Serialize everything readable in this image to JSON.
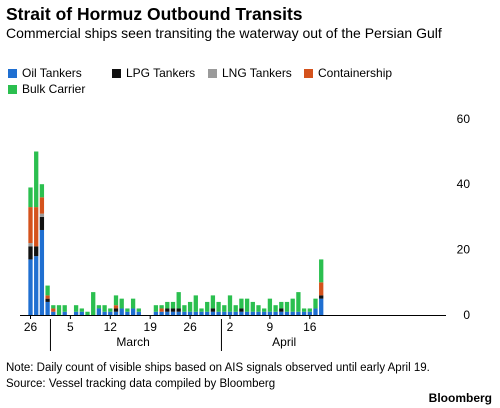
{
  "chart_data": {
    "type": "bar",
    "stacked": true,
    "title": "Strait of Hormuz Outbound Transits",
    "subtitle": "Commercial ships seen transiting the waterway out of the Persian Gulf",
    "xlabel": "",
    "ylabel": "",
    "ylim": [
      0,
      60
    ],
    "yticks": [
      0,
      20,
      40,
      60
    ],
    "grid": false,
    "legend_position": "top-left",
    "x_tick_labels": [
      "26",
      "5",
      "12",
      "19",
      "26",
      "2",
      "9",
      "16"
    ],
    "x_tick_days": [
      0,
      7,
      14,
      21,
      28,
      35,
      42,
      49
    ],
    "month_labels": [
      {
        "label": "March",
        "day": 18
      },
      {
        "label": "April",
        "day": 44.5
      }
    ],
    "month_dividers": [
      4,
      34
    ],
    "categories": [
      "Feb 26",
      "Feb 27",
      "Feb 28",
      "Mar 1",
      "Mar 2",
      "Mar 3",
      "Mar 4",
      "Mar 5",
      "Mar 6",
      "Mar 7",
      "Mar 8",
      "Mar 9",
      "Mar 10",
      "Mar 11",
      "Mar 12",
      "Mar 13",
      "Mar 14",
      "Mar 15",
      "Mar 16",
      "Mar 17",
      "Mar 18",
      "Mar 19",
      "Mar 20",
      "Mar 21",
      "Mar 22",
      "Mar 23",
      "Mar 24",
      "Mar 25",
      "Mar 26",
      "Mar 27",
      "Mar 28",
      "Mar 29",
      "Mar 30",
      "Mar 31",
      "Apr 1",
      "Apr 2",
      "Apr 3",
      "Apr 4",
      "Apr 5",
      "Apr 6",
      "Apr 7",
      "Apr 8",
      "Apr 9",
      "Apr 10",
      "Apr 11",
      "Apr 12",
      "Apr 13",
      "Apr 14",
      "Apr 15",
      "Apr 16",
      "Apr 17",
      "Apr 18"
    ],
    "series": [
      {
        "name": "Oil Tankers",
        "color": "#1f6fd1",
        "values": [
          17,
          18,
          26,
          4,
          1,
          0,
          1,
          0,
          1,
          1,
          0,
          0,
          2,
          1,
          1,
          1,
          2,
          1,
          2,
          1,
          0,
          0,
          1,
          1,
          1,
          1,
          1,
          1,
          1,
          1,
          1,
          1,
          1,
          1,
          1,
          1,
          1,
          1,
          1,
          1,
          1,
          1,
          1,
          1,
          1,
          1,
          1,
          1,
          1,
          1,
          2,
          5
        ]
      },
      {
        "name": "LPG Tankers",
        "color": "#111111",
        "values": [
          4,
          3,
          4,
          1,
          0,
          0,
          0,
          0,
          0,
          0,
          0,
          0,
          0,
          0,
          0,
          1,
          0,
          0,
          0,
          0,
          0,
          0,
          0,
          0,
          1,
          1,
          1,
          0,
          0,
          0,
          0,
          0,
          1,
          0,
          0,
          0,
          0,
          1,
          0,
          0,
          0,
          0,
          0,
          0,
          1,
          0,
          0,
          0,
          0,
          0,
          0,
          1
        ]
      },
      {
        "name": "LNG Tankers",
        "color": "#9a9a9a",
        "values": [
          1,
          0,
          1,
          0,
          0,
          0,
          0,
          0,
          0,
          0,
          0,
          0,
          0,
          0,
          0,
          0,
          0,
          0,
          0,
          0,
          0,
          0,
          0,
          0,
          0,
          0,
          0,
          0,
          0,
          0,
          0,
          0,
          0,
          0,
          0,
          0,
          0,
          0,
          0,
          0,
          0,
          0,
          0,
          0,
          0,
          0,
          0,
          0,
          0,
          0,
          0,
          0
        ]
      },
      {
        "name": "Containership",
        "color": "#d4521c",
        "values": [
          11,
          12,
          5,
          1,
          1,
          0,
          0,
          0,
          0,
          0,
          0,
          0,
          0,
          0,
          0,
          1,
          0,
          0,
          0,
          0,
          0,
          0,
          0,
          1,
          0,
          0,
          0,
          0,
          0,
          0,
          0,
          0,
          0,
          0,
          0,
          0,
          0,
          0,
          0,
          0,
          0,
          0,
          0,
          0,
          0,
          0,
          0,
          0,
          0,
          0,
          0,
          4
        ]
      },
      {
        "name": "Bulk Carrier",
        "color": "#2bbf4f",
        "values": [
          6,
          17,
          4,
          3,
          1,
          3,
          2,
          0,
          2,
          1,
          1,
          7,
          1,
          2,
          1,
          3,
          3,
          1,
          3,
          1,
          0,
          0,
          2,
          1,
          2,
          2,
          5,
          2,
          3,
          5,
          1,
          3,
          4,
          3,
          2,
          5,
          2,
          3,
          4,
          3,
          2,
          1,
          4,
          2,
          2,
          3,
          4,
          6,
          1,
          1,
          3,
          7
        ]
      }
    ]
  },
  "note": "Note: Daily count of visible ships based on AIS signals observed until early April 19.",
  "source": "Source: Vessel tracking data compiled by Bloomberg",
  "brand": "Bloomberg"
}
